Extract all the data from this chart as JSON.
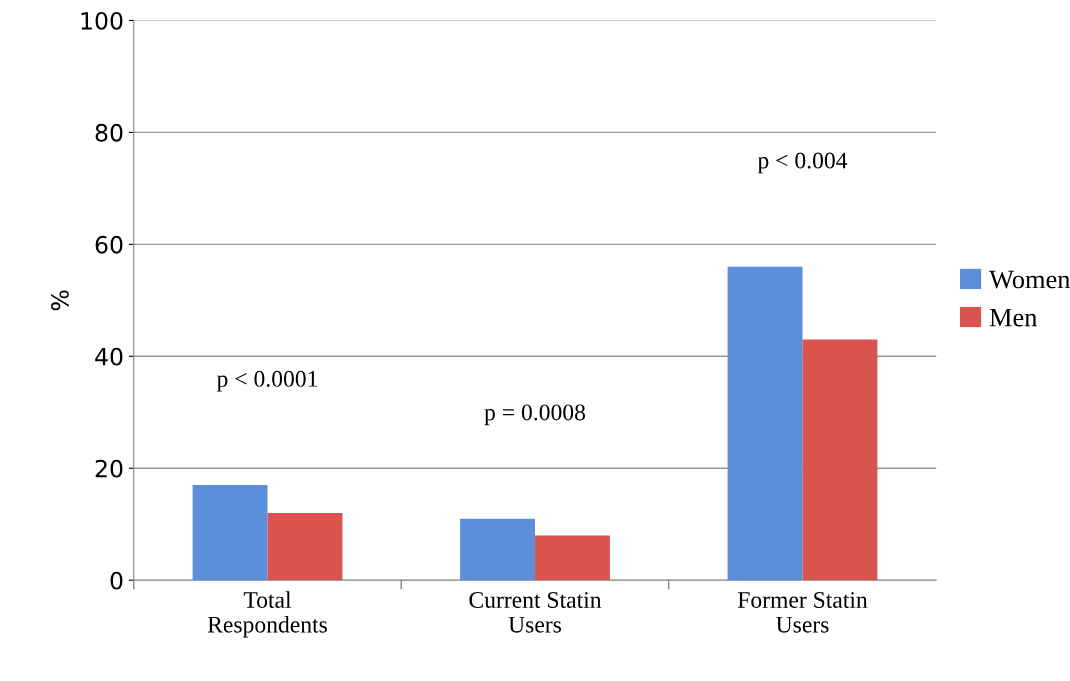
{
  "chart_data": {
    "type": "bar",
    "ylabel": "%",
    "categories": [
      "Total Respondents",
      "Current Statin Users",
      "Former Statin Users"
    ],
    "series": [
      {
        "name": "Women",
        "color": "#5b8fd9",
        "values": [
          17,
          11,
          56
        ]
      },
      {
        "name": "Men",
        "color": "#d9534f",
        "values": [
          12,
          8,
          43
        ]
      }
    ],
    "ylim": [
      0,
      100
    ],
    "yticks": [
      0,
      20,
      40,
      60,
      80,
      100
    ],
    "grid": "y",
    "legend": "right",
    "annotations": [
      "p < 0.0001",
      "p = 0.0008",
      "p < 0.004"
    ]
  }
}
